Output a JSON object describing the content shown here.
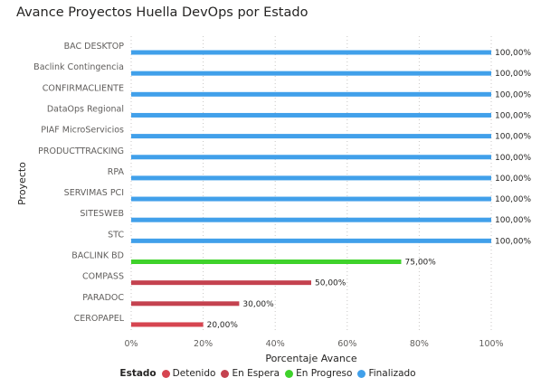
{
  "chart_data": {
    "type": "bar",
    "orientation": "horizontal",
    "title": "Avance Proyectos Huella DevOps por Estado",
    "xlabel": "Porcentaje Avance",
    "ylabel": "Proyecto",
    "xlim": [
      0,
      100
    ],
    "xticks": [
      "0%",
      "20%",
      "40%",
      "60%",
      "80%",
      "100%"
    ],
    "grid": "vertical-dotted",
    "legend": {
      "title": "Estado",
      "placement": "bottom",
      "items": [
        {
          "label": "Detenido",
          "color": "#d64550"
        },
        {
          "label": "En Espera",
          "color": "#c4424f"
        },
        {
          "label": "En Progreso",
          "color": "#3fd22b"
        },
        {
          "label": "Finalizado",
          "color": "#41a0ea"
        }
      ]
    },
    "categories": [
      "BAC DESKTOP",
      "Baclink Contingencia",
      "CONFIRMACLIENTE",
      "DataOps Regional",
      "PIAF MicroServicios",
      "PRODUCTTRACKING",
      "RPA",
      "SERVIMAS PCI",
      "SITESWEB",
      "STC",
      "BACLINK BD",
      "COMPASS",
      "PARADOC",
      "CEROPAPEL"
    ],
    "values": [
      100,
      100,
      100,
      100,
      100,
      100,
      100,
      100,
      100,
      100,
      75,
      50,
      30,
      20
    ],
    "status": [
      "Finalizado",
      "Finalizado",
      "Finalizado",
      "Finalizado",
      "Finalizado",
      "Finalizado",
      "Finalizado",
      "Finalizado",
      "Finalizado",
      "Finalizado",
      "En Progreso",
      "En Espera",
      "En Espera",
      "Detenido"
    ],
    "data_labels": [
      "100,00%",
      "100,00%",
      "100,00%",
      "100,00%",
      "100,00%",
      "100,00%",
      "100,00%",
      "100,00%",
      "100,00%",
      "100,00%",
      "75,00%",
      "50,00%",
      "30,00%",
      "20,00%"
    ]
  }
}
